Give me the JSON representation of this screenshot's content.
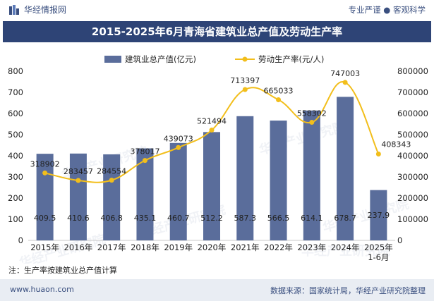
{
  "brand": {
    "name": "华经情报网",
    "logo_icon": "huajing-logo-icon"
  },
  "tagline": "专业严谨 ● 客观科学",
  "title": "2015-2025年6月青海省建筑业总产值及劳动生产率",
  "note": "注：生产率按建筑业总产值计算",
  "footer": {
    "site": "www.huaon.com",
    "source": "数据来源：国家统计局，华经产业研究院整理"
  },
  "watermark": "华经产业研究院",
  "colors": {
    "bar": "#5a6d9b",
    "line": "#f2be1b",
    "title_bg": "#2e4476",
    "footer_bg": "#e9edf3"
  },
  "chart_data": {
    "type": "bar",
    "categories": [
      "2015年",
      "2016年",
      "2017年",
      "2018年",
      "2019年",
      "2020年",
      "2021年",
      "2022年",
      "2023年",
      "2024年",
      "2025年\n1-6月"
    ],
    "series": [
      {
        "name": "建筑业总产值(亿元)",
        "type": "bar",
        "axis": "left",
        "values": [
          409.5,
          410.6,
          406.8,
          435.1,
          460.7,
          512.2,
          587.3,
          566.5,
          614.1,
          678.7,
          237.9
        ]
      },
      {
        "name": "劳动生产率(元/人)",
        "type": "line",
        "axis": "right",
        "values": [
          318902,
          283457,
          284554,
          378017,
          439073,
          521494,
          713397,
          665033,
          558302,
          747003,
          408343
        ]
      }
    ],
    "yleft": {
      "ylim": [
        0,
        800
      ],
      "ticks": [
        0,
        100,
        200,
        300,
        400,
        500,
        600,
        700,
        800
      ]
    },
    "yright": {
      "ylim": [
        0,
        800000
      ],
      "ticks": [
        "0",
        "100000",
        "200000",
        "300000",
        "400000",
        "500000",
        "600000",
        "700000",
        "800000"
      ]
    },
    "legend": "top-center",
    "grid": false
  }
}
